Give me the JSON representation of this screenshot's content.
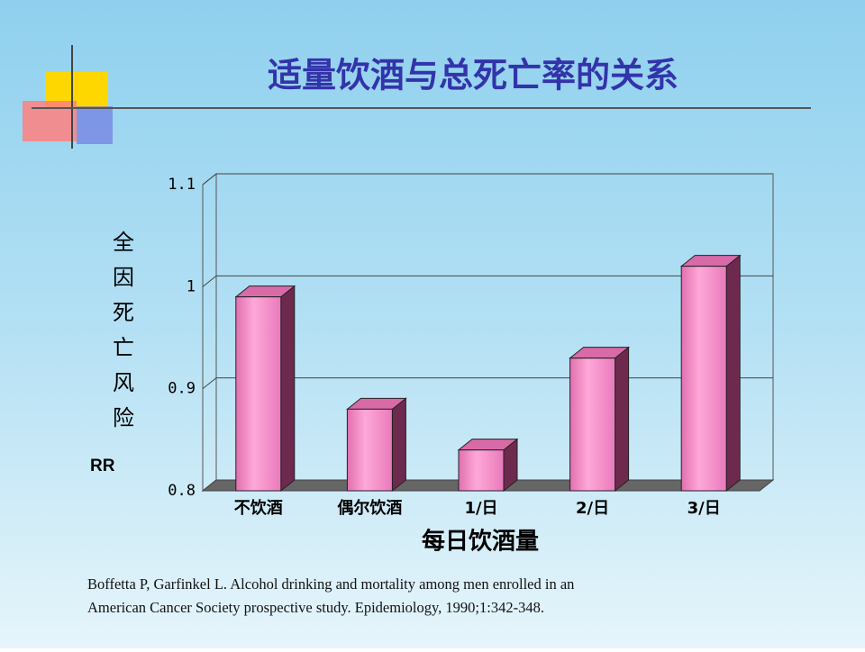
{
  "chart_data": {
    "type": "bar3d",
    "title": "适量饮酒与总死亡率的关系",
    "y_label": "全因死亡风险",
    "y_unit": "RR",
    "x_label": "每日饮酒量",
    "categories": [
      "不饮酒",
      "偶尔饮酒",
      "1/日",
      "2/日",
      "3/日"
    ],
    "values": [
      0.99,
      0.88,
      0.84,
      0.93,
      1.02
    ],
    "color": "#f58cc4",
    "ylim": [
      0.8,
      1.1
    ],
    "yticks": [
      0.8,
      0.9,
      1,
      1.1
    ],
    "grid": true,
    "citation": [
      "Boffetta P, Garfinkel L. Alcohol drinking and mortality among men enrolled in an",
      "American Cancer Society prospective study. Epidemiology, 1990;1:342-348."
    ]
  }
}
